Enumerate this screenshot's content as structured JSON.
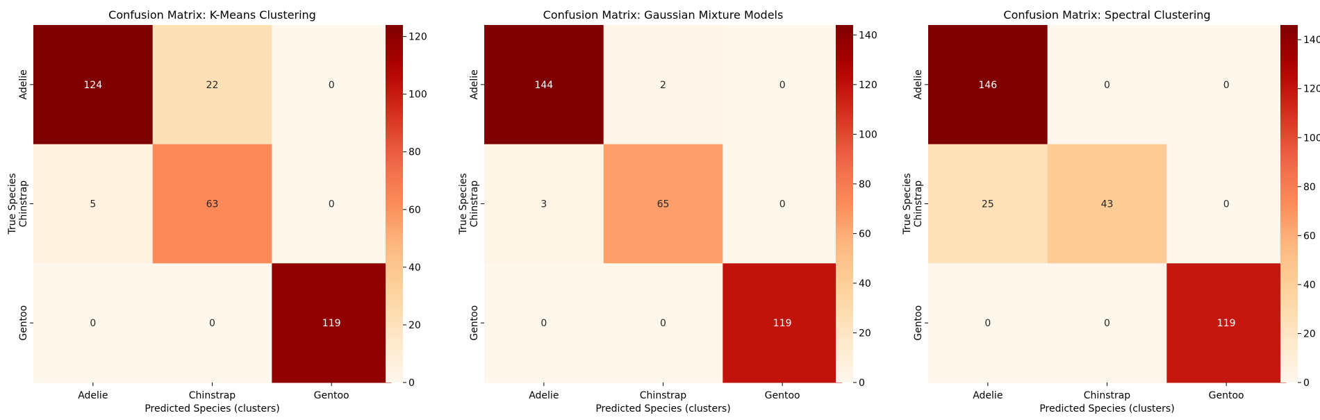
{
  "chart_data": [
    {
      "type": "heatmap",
      "title": "Confusion Matrix: K-Means Clustering",
      "xlabel": "Predicted Species (clusters)",
      "ylabel": "True Species",
      "x_categories": [
        "Adelie",
        "Chinstrap",
        "Gentoo"
      ],
      "y_categories": [
        "Adelie",
        "Chinstrap",
        "Gentoo"
      ],
      "values": [
        [
          124,
          22,
          0
        ],
        [
          5,
          63,
          0
        ],
        [
          0,
          0,
          119
        ]
      ],
      "colormap": "OrRd",
      "color_range": [
        0,
        124
      ],
      "colorbar_ticks": [
        0,
        20,
        40,
        60,
        80,
        100,
        120
      ]
    },
    {
      "type": "heatmap",
      "title": "Confusion Matrix: Gaussian Mixture Models",
      "xlabel": "Predicted Species (clusters)",
      "ylabel": "True Species",
      "x_categories": [
        "Adelie",
        "Chinstrap",
        "Gentoo"
      ],
      "y_categories": [
        "Adelie",
        "Chinstrap",
        "Gentoo"
      ],
      "values": [
        [
          144,
          2,
          0
        ],
        [
          3,
          65,
          0
        ],
        [
          0,
          0,
          119
        ]
      ],
      "colormap": "OrRd",
      "color_range": [
        0,
        144
      ],
      "colorbar_ticks": [
        0,
        20,
        40,
        60,
        80,
        100,
        120,
        140
      ]
    },
    {
      "type": "heatmap",
      "title": "Confusion Matrix: Spectral Clustering",
      "xlabel": "Predicted Species (clusters)",
      "ylabel": "True Species",
      "x_categories": [
        "Adelie",
        "Chinstrap",
        "Gentoo"
      ],
      "y_categories": [
        "Adelie",
        "Chinstrap",
        "Gentoo"
      ],
      "values": [
        [
          146,
          0,
          0
        ],
        [
          25,
          43,
          0
        ],
        [
          0,
          0,
          119
        ]
      ],
      "colormap": "OrRd",
      "color_range": [
        0,
        146
      ],
      "colorbar_ticks": [
        0,
        20,
        40,
        60,
        80,
        100,
        120,
        140
      ]
    }
  ]
}
